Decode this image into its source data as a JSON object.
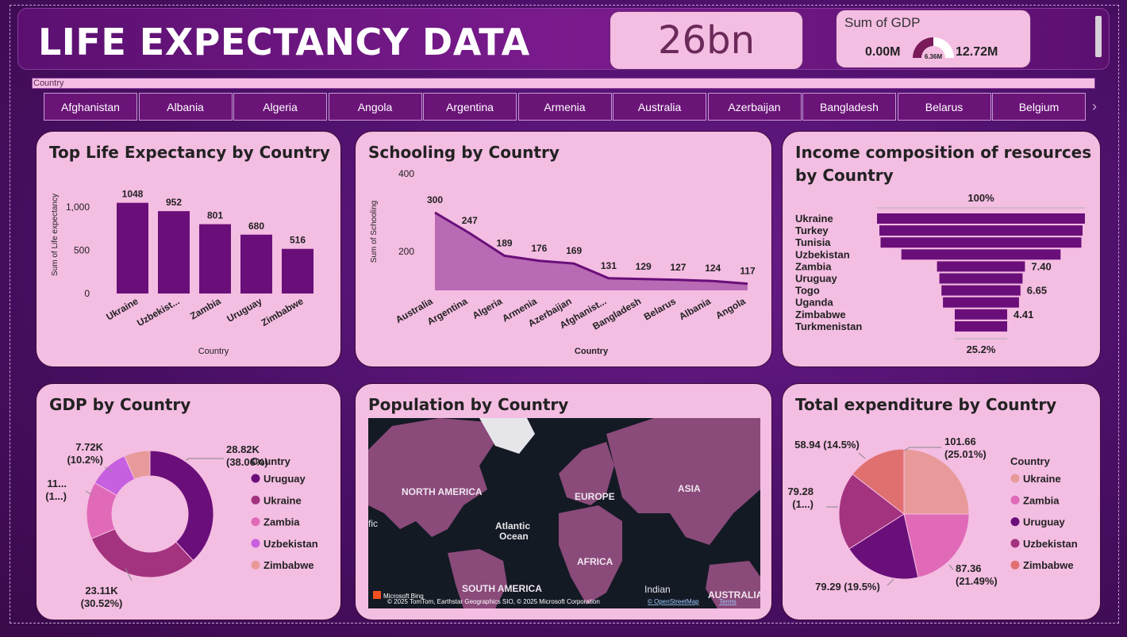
{
  "header": {
    "title": "LIFE EXPECTANCY DATA",
    "kpi_value": "26bn",
    "gauge": {
      "title": "Sum of GDP",
      "min": "0.00M",
      "max": "12.72M",
      "value": "6.36M",
      "fraction": 0.5
    }
  },
  "slicer": {
    "label": "Country",
    "items": [
      "Afghanistan",
      "Albania",
      "Algeria",
      "Angola",
      "Argentina",
      "Armenia",
      "Australia",
      "Azerbaijan",
      "Bangladesh",
      "Belarus",
      "Belgium"
    ]
  },
  "chart_data": [
    {
      "type": "bar",
      "title": "Top Life Expectancy by Country",
      "xlabel": "Country",
      "ylabel": "Sum of Life expectancy",
      "categories": [
        "Ukraine",
        "Uzbekist...",
        "Zambia",
        "Uruguay",
        "Zimbabwe"
      ],
      "values": [
        1048,
        952,
        801,
        680,
        516
      ],
      "ylim": [
        0,
        1100
      ],
      "yticks": [
        "0",
        "500",
        "1,000"
      ]
    },
    {
      "type": "area",
      "title": "Schooling by Country",
      "xlabel": "Country",
      "ylabel": "Sum of Schooling",
      "categories": [
        "Australia",
        "Argentina",
        "Algeria",
        "Armenia",
        "Azerbaijan",
        "Afghanist...",
        "Bangladesh",
        "Belarus",
        "Albania",
        "Angola"
      ],
      "values": [
        300,
        247,
        189,
        176,
        169,
        131,
        129,
        127,
        124,
        117
      ],
      "ylim": [
        100,
        400
      ],
      "yticks": [
        "200",
        "400"
      ]
    },
    {
      "type": "funnel",
      "title": "Income composition of resources by Country",
      "categories": [
        "Ukraine",
        "Turkey",
        "Tunisia",
        "Uzbekistan",
        "Zambia",
        "Uruguay",
        "Togo",
        "Uganda",
        "Zimbabwe",
        "Turkmenistan"
      ],
      "values": [
        17.5,
        17.1,
        16.9,
        13.4,
        7.4,
        7.0,
        6.65,
        6.4,
        4.41,
        4.41
      ],
      "value_labels": [
        "",
        "",
        "",
        "",
        "7.40",
        "",
        "6.65",
        "",
        "4.41",
        ""
      ],
      "top_label": "100%",
      "bottom_label": "25.2%"
    },
    {
      "type": "pie",
      "title": "GDP by Country",
      "legend_title": "Country",
      "categories": [
        "Uruguay",
        "Ukraine",
        "Zambia",
        "Uzbekistan",
        "Zimbabwe"
      ],
      "values": [
        28.82,
        23.11,
        11.0,
        7.72,
        5.0
      ],
      "labels": [
        "28.82K\n(38.06%)",
        "23.11K\n(30.52%)",
        "11...\n(1...)",
        "7.72K\n(10.2%)",
        ""
      ],
      "colors": [
        "#6a0f7a",
        "#a3337f",
        "#e06ab8",
        "#c760e0",
        "#e89a9a"
      ],
      "donut": true
    },
    {
      "type": "map",
      "title": "Population by Country",
      "labels": [
        "NORTH AMERICA",
        "EUROPE",
        "ASIA",
        "Atlantic\nOcean",
        "AFRICA",
        "SOUTH AMERICA",
        "Indian",
        "AUSTRALIA",
        "fic"
      ],
      "attribution": "© 2025 TomTom, Earthstar Geographics SIO, © 2025 Microsoft Corporation",
      "links": [
        "© OpenStreetMap",
        "Terms"
      ],
      "logo": "Microsoft Bing"
    },
    {
      "type": "pie",
      "title": "Total expenditure by Country",
      "legend_title": "Country",
      "categories": [
        "Ukraine",
        "Zambia",
        "Uruguay",
        "Uzbekistan",
        "Zimbabwe"
      ],
      "values": [
        101.66,
        87.36,
        79.29,
        79.28,
        58.94
      ],
      "labels": [
        "101.66\n(25.01%)",
        "87.36\n(21.49%)",
        "79.29 (19.5%)",
        "79.28\n(1...)",
        "58.94 (14.5%)"
      ],
      "colors": [
        "#e89a9a",
        "#e06ab8",
        "#6a0f7a",
        "#a3337f",
        "#e07070"
      ],
      "donut": false
    }
  ]
}
